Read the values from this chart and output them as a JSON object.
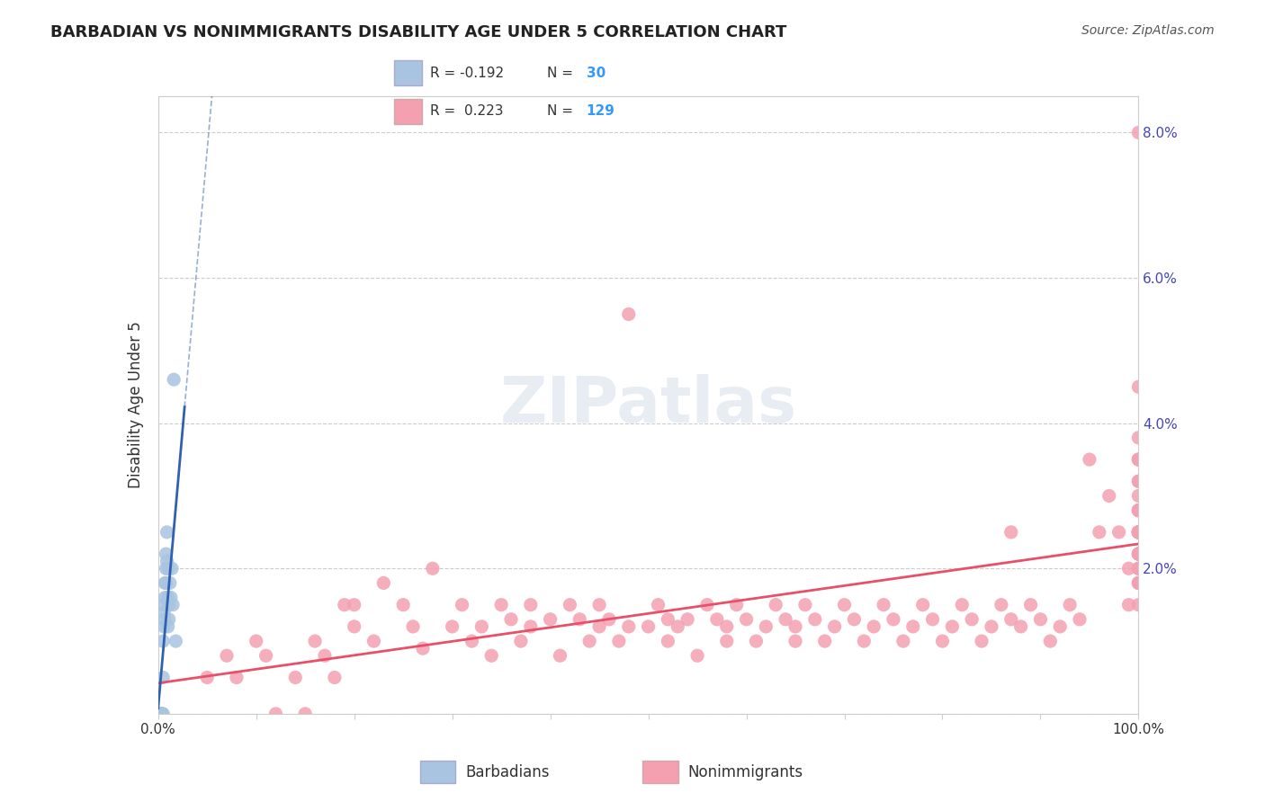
{
  "title": "BARBADIAN VS NONIMMIGRANTS DISABILITY AGE UNDER 5 CORRELATION CHART",
  "source": "Source: ZipAtlas.com",
  "xlabel": "",
  "ylabel": "Disability Age Under 5",
  "watermark": "ZIPatlas",
  "legend_labels": [
    "Barbadians",
    "Nonimmigrants"
  ],
  "legend_r": [
    -0.192,
    0.223
  ],
  "legend_n": [
    30,
    129
  ],
  "barbadian_color": "#a8c4e0",
  "nonimmigrant_color": "#f4a0b0",
  "barbadian_line_color": "#3060b0",
  "nonimmigrant_line_color": "#e8506a",
  "xlim": [
    0.0,
    1.0
  ],
  "ylim": [
    0.0,
    0.085
  ],
  "xticks": [
    0.0,
    0.1,
    0.2,
    0.3,
    0.4,
    0.5,
    0.6,
    0.7,
    0.8,
    0.9,
    1.0
  ],
  "xticklabels": [
    "0.0%",
    "",
    "",
    "",
    "",
    "",
    "",
    "",
    "",
    "",
    "100.0%"
  ],
  "yticks": [
    0.0,
    0.02,
    0.04,
    0.06,
    0.08
  ],
  "yticklabels": [
    "",
    "2.0%",
    "4.0%",
    "6.0%",
    "8.0%"
  ],
  "barbadian_x": [
    0.002,
    0.003,
    0.003,
    0.004,
    0.004,
    0.005,
    0.005,
    0.005,
    0.006,
    0.006,
    0.006,
    0.007,
    0.007,
    0.007,
    0.008,
    0.008,
    0.008,
    0.009,
    0.009,
    0.01,
    0.01,
    0.01,
    0.011,
    0.011,
    0.012,
    0.013,
    0.014,
    0.015,
    0.016,
    0.018
  ],
  "barbadian_y": [
    0.0,
    0.0,
    0.0,
    0.0,
    0.0,
    0.005,
    0.01,
    0.0,
    0.015,
    0.012,
    0.014,
    0.016,
    0.018,
    0.013,
    0.02,
    0.022,
    0.018,
    0.025,
    0.021,
    0.02,
    0.016,
    0.012,
    0.015,
    0.013,
    0.018,
    0.016,
    0.02,
    0.015,
    0.046,
    0.01
  ],
  "nonimmigrant_x": [
    0.05,
    0.07,
    0.08,
    0.1,
    0.11,
    0.12,
    0.14,
    0.15,
    0.16,
    0.17,
    0.18,
    0.19,
    0.2,
    0.2,
    0.22,
    0.23,
    0.25,
    0.26,
    0.27,
    0.28,
    0.3,
    0.31,
    0.32,
    0.33,
    0.34,
    0.35,
    0.36,
    0.37,
    0.38,
    0.38,
    0.4,
    0.41,
    0.42,
    0.43,
    0.44,
    0.45,
    0.45,
    0.46,
    0.47,
    0.48,
    0.48,
    0.5,
    0.51,
    0.52,
    0.52,
    0.53,
    0.54,
    0.55,
    0.56,
    0.57,
    0.58,
    0.58,
    0.59,
    0.6,
    0.61,
    0.62,
    0.63,
    0.64,
    0.65,
    0.65,
    0.66,
    0.67,
    0.68,
    0.69,
    0.7,
    0.71,
    0.72,
    0.73,
    0.74,
    0.75,
    0.76,
    0.77,
    0.78,
    0.79,
    0.8,
    0.81,
    0.82,
    0.83,
    0.84,
    0.85,
    0.86,
    0.87,
    0.87,
    0.88,
    0.89,
    0.9,
    0.91,
    0.92,
    0.93,
    0.94,
    0.95,
    0.96,
    0.97,
    0.98,
    0.99,
    0.99,
    1.0,
    1.0,
    1.0,
    1.0,
    1.0,
    1.0,
    1.0,
    1.0,
    1.0,
    1.0,
    1.0,
    1.0,
    1.0,
    1.0,
    1.0,
    1.0,
    1.0,
    1.0,
    1.0,
    1.0,
    1.0,
    1.0,
    1.0,
    1.0,
    1.0,
    1.0,
    1.0,
    1.0,
    1.0,
    1.0,
    1.0,
    1.0,
    1.0
  ],
  "nonimmigrant_y": [
    0.005,
    0.008,
    0.005,
    0.01,
    0.008,
    0.0,
    0.005,
    0.0,
    0.01,
    0.008,
    0.005,
    0.015,
    0.015,
    0.012,
    0.01,
    0.018,
    0.015,
    0.012,
    0.009,
    0.02,
    0.012,
    0.015,
    0.01,
    0.012,
    0.008,
    0.015,
    0.013,
    0.01,
    0.012,
    0.015,
    0.013,
    0.008,
    0.015,
    0.013,
    0.01,
    0.012,
    0.015,
    0.013,
    0.01,
    0.012,
    0.055,
    0.012,
    0.015,
    0.013,
    0.01,
    0.012,
    0.013,
    0.008,
    0.015,
    0.013,
    0.01,
    0.012,
    0.015,
    0.013,
    0.01,
    0.012,
    0.015,
    0.013,
    0.01,
    0.012,
    0.015,
    0.013,
    0.01,
    0.012,
    0.015,
    0.013,
    0.01,
    0.012,
    0.015,
    0.013,
    0.01,
    0.012,
    0.015,
    0.013,
    0.01,
    0.012,
    0.015,
    0.013,
    0.01,
    0.012,
    0.015,
    0.013,
    0.025,
    0.012,
    0.015,
    0.013,
    0.01,
    0.012,
    0.015,
    0.013,
    0.035,
    0.025,
    0.03,
    0.025,
    0.02,
    0.015,
    0.018,
    0.022,
    0.02,
    0.018,
    0.015,
    0.035,
    0.03,
    0.028,
    0.025,
    0.022,
    0.028,
    0.025,
    0.025,
    0.08,
    0.025,
    0.038,
    0.025,
    0.045,
    0.025,
    0.035,
    0.022,
    0.032,
    0.025,
    0.032,
    0.035,
    0.028,
    0.025,
    0.022,
    0.02,
    0.018,
    0.025,
    0.028,
    0.025
  ]
}
